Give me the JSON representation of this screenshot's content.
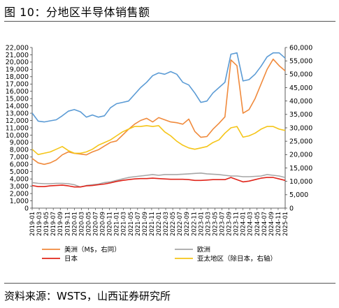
{
  "header": {
    "title": "图 10：分地区半导体销售额"
  },
  "footer": {
    "source": "资料来源：WSTS，山西证券研究所"
  },
  "colors": {
    "americas": "#f08a3c",
    "europe": "#a6a6a6",
    "japan": "#e0241a",
    "asia_pacific": "#f5c518",
    "china_blue": "#5b9bd5"
  },
  "chart_data": {
    "type": "line",
    "ylim_left": [
      0,
      22000
    ],
    "ylim_right": [
      0,
      60000
    ],
    "y_left_ticks": [
      "0",
      "1,000",
      "2,000",
      "3,000",
      "4,000",
      "5,000",
      "6,000",
      "7,000",
      "8,000",
      "9,000",
      "10,000",
      "11,000",
      "12,000",
      "13,000",
      "14,000",
      "15,000",
      "16,000",
      "17,000",
      "18,000",
      "19,000",
      "20,000",
      "21,000",
      "22,000"
    ],
    "y_right_ticks": [
      "0",
      "5,000",
      "10,000",
      "15,000",
      "20,000",
      "25,000",
      "30,000",
      "35,000",
      "40,000",
      "45,000",
      "50,000",
      "55,000",
      "60,000"
    ],
    "x_ticks": [
      "2019-01",
      "2019-03",
      "2019-05",
      "2019-07",
      "2019-09",
      "2019-11",
      "2020-01",
      "2020-03",
      "2020-05",
      "2020-07",
      "2020-09",
      "2020-11",
      "2021-01",
      "2021-03",
      "2021-05",
      "2021-07",
      "2021-09",
      "2021-11",
      "2022-01",
      "2022-03",
      "2022-05",
      "2022-07",
      "2022-09",
      "2022-11",
      "2023-01",
      "2023-03",
      "2023-05",
      "2023-07",
      "2023-09",
      "2023-11",
      "2024-01",
      "2024-03",
      "2024-05",
      "2024-07",
      "2024-09",
      "2024-11",
      "2025-01"
    ],
    "series": [
      {
        "key": "china",
        "axis": "right",
        "points": [
          [
            0,
            35500
          ],
          [
            1,
            32500
          ],
          [
            2,
            32200
          ],
          [
            3,
            32600
          ],
          [
            4,
            33000
          ],
          [
            5,
            34500
          ],
          [
            6,
            36200
          ],
          [
            7,
            36800
          ],
          [
            8,
            36000
          ],
          [
            9,
            34000
          ],
          [
            10,
            34800
          ],
          [
            11,
            34000
          ],
          [
            12,
            34500
          ],
          [
            13,
            37500
          ],
          [
            14,
            39000
          ],
          [
            15,
            39500
          ],
          [
            16,
            40000
          ],
          [
            17,
            42500
          ],
          [
            18,
            45000
          ],
          [
            19,
            47000
          ],
          [
            20,
            49500
          ],
          [
            21,
            50500
          ],
          [
            22,
            50000
          ],
          [
            23,
            51000
          ],
          [
            24,
            50000
          ],
          [
            25,
            47000
          ],
          [
            26,
            46000
          ],
          [
            27,
            43000
          ],
          [
            28,
            39500
          ],
          [
            29,
            40000
          ],
          [
            30,
            43000
          ],
          [
            31,
            45000
          ],
          [
            32,
            47000
          ],
          [
            33,
            57500
          ],
          [
            34,
            58000
          ],
          [
            35,
            47500
          ],
          [
            36,
            48000
          ],
          [
            37,
            50000
          ],
          [
            38,
            53000
          ],
          [
            39,
            56500
          ],
          [
            40,
            58000
          ],
          [
            41,
            58000
          ],
          [
            42,
            56000
          ]
        ]
      },
      {
        "key": "americas",
        "axis": "left",
        "points": [
          [
            0,
            6800
          ],
          [
            1,
            6200
          ],
          [
            2,
            6000
          ],
          [
            3,
            6200
          ],
          [
            4,
            6600
          ],
          [
            5,
            7300
          ],
          [
            6,
            7700
          ],
          [
            7,
            7500
          ],
          [
            8,
            7400
          ],
          [
            9,
            7300
          ],
          [
            10,
            7700
          ],
          [
            11,
            8000
          ],
          [
            12,
            8500
          ],
          [
            13,
            9000
          ],
          [
            14,
            9200
          ],
          [
            15,
            10000
          ],
          [
            16,
            10800
          ],
          [
            17,
            11500
          ],
          [
            18,
            12000
          ],
          [
            19,
            12300
          ],
          [
            20,
            11800
          ],
          [
            21,
            12400
          ],
          [
            22,
            12100
          ],
          [
            23,
            11800
          ],
          [
            24,
            11700
          ],
          [
            25,
            11500
          ],
          [
            26,
            12200
          ],
          [
            27,
            10500
          ],
          [
            28,
            9700
          ],
          [
            29,
            9800
          ],
          [
            30,
            10800
          ],
          [
            31,
            11600
          ],
          [
            32,
            12500
          ],
          [
            33,
            20300
          ],
          [
            34,
            19500
          ],
          [
            35,
            13000
          ],
          [
            36,
            13500
          ],
          [
            37,
            15000
          ],
          [
            38,
            17000
          ],
          [
            39,
            19000
          ],
          [
            40,
            20400
          ],
          [
            41,
            19500
          ],
          [
            42,
            18800
          ]
        ]
      },
      {
        "key": "europe",
        "axis": "left",
        "points": [
          [
            0,
            3500
          ],
          [
            1,
            3400
          ],
          [
            2,
            3350
          ],
          [
            3,
            3350
          ],
          [
            4,
            3400
          ],
          [
            5,
            3400
          ],
          [
            6,
            3350
          ],
          [
            7,
            3200
          ],
          [
            8,
            2900
          ],
          [
            9,
            3100
          ],
          [
            10,
            3200
          ],
          [
            11,
            3300
          ],
          [
            12,
            3500
          ],
          [
            13,
            3600
          ],
          [
            14,
            3800
          ],
          [
            15,
            4000
          ],
          [
            16,
            4200
          ],
          [
            17,
            4300
          ],
          [
            18,
            4400
          ],
          [
            19,
            4500
          ],
          [
            20,
            4600
          ],
          [
            21,
            4500
          ],
          [
            22,
            4600
          ],
          [
            23,
            4600
          ],
          [
            24,
            4600
          ],
          [
            25,
            4650
          ],
          [
            26,
            4700
          ],
          [
            27,
            4750
          ],
          [
            28,
            4800
          ],
          [
            29,
            4700
          ],
          [
            30,
            4650
          ],
          [
            31,
            4600
          ],
          [
            32,
            4500
          ],
          [
            33,
            4400
          ],
          [
            34,
            4400
          ],
          [
            35,
            4300
          ],
          [
            36,
            4300
          ],
          [
            37,
            4350
          ],
          [
            38,
            4400
          ],
          [
            39,
            4600
          ],
          [
            40,
            4500
          ],
          [
            41,
            4400
          ],
          [
            42,
            4200
          ]
        ]
      },
      {
        "key": "japan",
        "axis": "left",
        "points": [
          [
            0,
            3100
          ],
          [
            1,
            2950
          ],
          [
            2,
            2950
          ],
          [
            3,
            3050
          ],
          [
            4,
            3100
          ],
          [
            5,
            3150
          ],
          [
            6,
            3050
          ],
          [
            7,
            2900
          ],
          [
            8,
            2900
          ],
          [
            9,
            3050
          ],
          [
            10,
            3100
          ],
          [
            11,
            3200
          ],
          [
            12,
            3300
          ],
          [
            13,
            3450
          ],
          [
            14,
            3650
          ],
          [
            15,
            3800
          ],
          [
            16,
            3900
          ],
          [
            17,
            4000
          ],
          [
            18,
            4050
          ],
          [
            19,
            4050
          ],
          [
            20,
            4100
          ],
          [
            21,
            4050
          ],
          [
            22,
            4000
          ],
          [
            23,
            3950
          ],
          [
            24,
            3950
          ],
          [
            25,
            3950
          ],
          [
            26,
            3900
          ],
          [
            27,
            3800
          ],
          [
            28,
            3800
          ],
          [
            29,
            3850
          ],
          [
            30,
            3900
          ],
          [
            31,
            3900
          ],
          [
            32,
            3900
          ],
          [
            33,
            4200
          ],
          [
            34,
            3900
          ],
          [
            35,
            3600
          ],
          [
            36,
            3700
          ],
          [
            37,
            3900
          ],
          [
            38,
            4100
          ],
          [
            39,
            4200
          ],
          [
            40,
            4200
          ],
          [
            41,
            4000
          ],
          [
            42,
            3800
          ]
        ]
      },
      {
        "key": "apac",
        "axis": "right",
        "points": [
          [
            0,
            22000
          ],
          [
            1,
            20000
          ],
          [
            2,
            20500
          ],
          [
            3,
            21000
          ],
          [
            4,
            22000
          ],
          [
            5,
            23000
          ],
          [
            6,
            21500
          ],
          [
            7,
            20500
          ],
          [
            8,
            20500
          ],
          [
            9,
            21000
          ],
          [
            10,
            22000
          ],
          [
            11,
            23500
          ],
          [
            12,
            24500
          ],
          [
            13,
            25500
          ],
          [
            14,
            27000
          ],
          [
            15,
            28500
          ],
          [
            16,
            29500
          ],
          [
            17,
            30500
          ],
          [
            18,
            30500
          ],
          [
            19,
            30800
          ],
          [
            20,
            30500
          ],
          [
            21,
            30800
          ],
          [
            22,
            28500
          ],
          [
            23,
            27000
          ],
          [
            24,
            25000
          ],
          [
            25,
            23500
          ],
          [
            26,
            22500
          ],
          [
            27,
            22000
          ],
          [
            28,
            22500
          ],
          [
            29,
            23000
          ],
          [
            30,
            24500
          ],
          [
            31,
            25500
          ],
          [
            32,
            28000
          ],
          [
            33,
            30000
          ],
          [
            34,
            30500
          ],
          [
            35,
            26500
          ],
          [
            36,
            27000
          ],
          [
            37,
            28000
          ],
          [
            38,
            29500
          ],
          [
            39,
            30500
          ],
          [
            40,
            30500
          ],
          [
            41,
            29500
          ],
          [
            42,
            29000
          ]
        ]
      }
    ],
    "legend": [
      {
        "key": "americas",
        "label": "美洲（M$，右同）"
      },
      {
        "key": "europe",
        "label": "欧洲"
      },
      {
        "key": "japan",
        "label": "日本"
      },
      {
        "key": "apac",
        "label": "亚太地区（除日本，右轴）"
      }
    ],
    "legend_position": "bottom"
  }
}
